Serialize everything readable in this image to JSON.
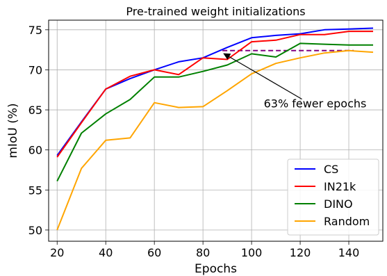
{
  "chart_data": {
    "type": "line",
    "title": "Pre-trained weight initializations",
    "xlabel": "Epochs",
    "ylabel": "mIoU (%)",
    "xlim": [
      16.5,
      154
    ],
    "ylim": [
      48.6,
      76.2
    ],
    "xticks": [
      20,
      40,
      60,
      80,
      100,
      120,
      140
    ],
    "yticks": [
      50,
      55,
      60,
      65,
      70,
      75
    ],
    "grid": true,
    "legend_position": "lower-right",
    "x": [
      20,
      30,
      40,
      50,
      60,
      70,
      80,
      90,
      100,
      110,
      120,
      130,
      140,
      150
    ],
    "series": [
      {
        "name": "CS",
        "color": "#0000ff",
        "values": [
          59.3,
          63.5,
          67.6,
          68.9,
          70.0,
          71.0,
          71.5,
          72.8,
          74.0,
          74.3,
          74.5,
          75.0,
          75.1,
          75.2
        ]
      },
      {
        "name": "IN21k",
        "color": "#ff0000",
        "values": [
          59.1,
          63.4,
          67.6,
          69.2,
          70.0,
          69.4,
          71.5,
          71.3,
          73.5,
          73.7,
          74.4,
          74.4,
          74.8,
          74.8
        ]
      },
      {
        "name": "DINO",
        "color": "#008000",
        "values": [
          56.1,
          62.1,
          64.5,
          66.3,
          69.1,
          69.1,
          69.8,
          70.6,
          72.0,
          71.6,
          73.3,
          73.2,
          73.1,
          73.1
        ]
      },
      {
        "name": "Random",
        "color": "#ffa500",
        "values": [
          50.0,
          57.7,
          61.2,
          61.5,
          65.9,
          65.3,
          65.4,
          67.4,
          69.5,
          70.8,
          71.5,
          72.1,
          72.4,
          72.2
        ]
      }
    ],
    "reference_line": {
      "x": [
        88,
        142
      ],
      "y": 72.4,
      "color": "#800080",
      "style": "dashed"
    },
    "annotation": {
      "text": "63% fewer epochs",
      "arrow_to": {
        "x": 88,
        "y": 72.2
      },
      "text_at": {
        "x": 105,
        "y": 65.3
      }
    }
  }
}
